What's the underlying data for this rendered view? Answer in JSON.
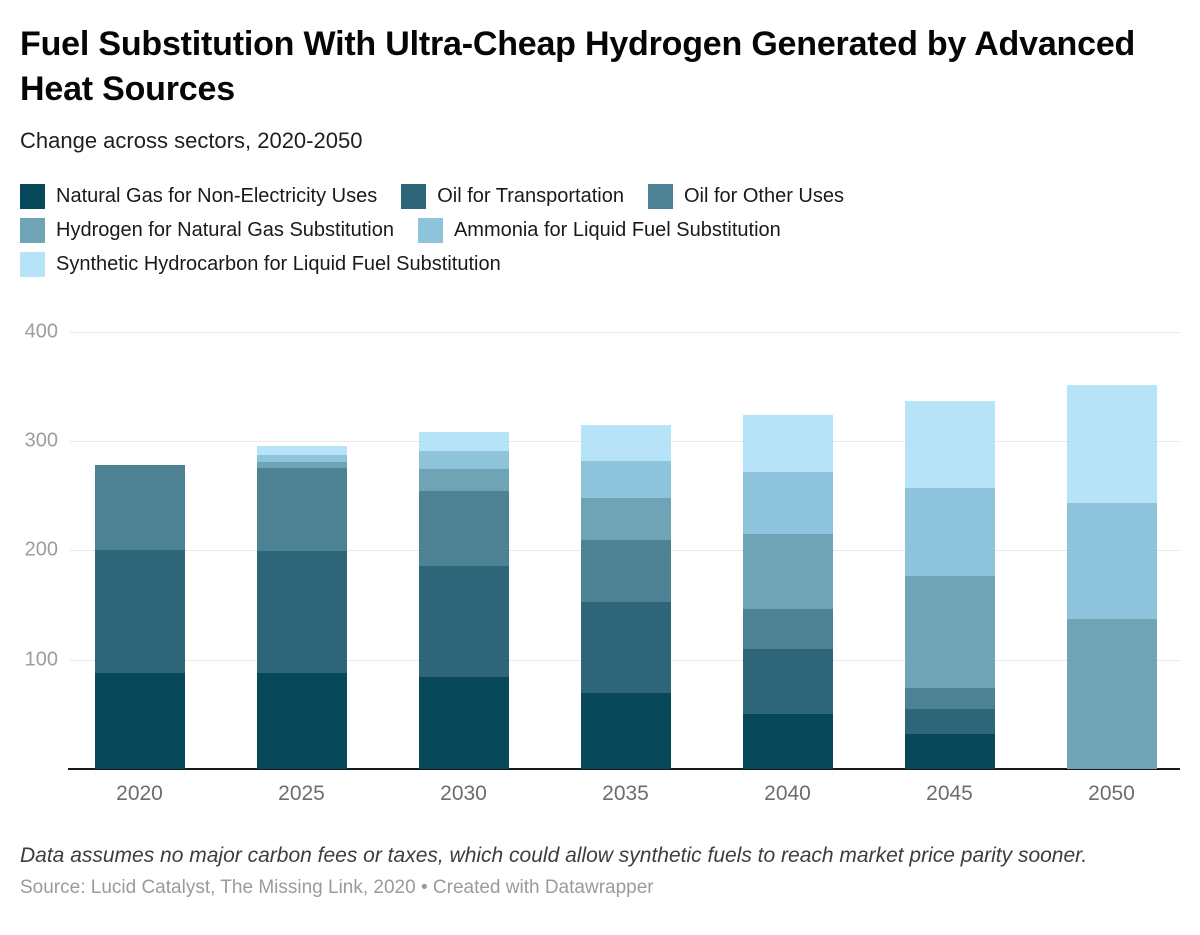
{
  "header": {
    "title": "Fuel Substitution With Ultra-Cheap Hydrogen Generated by Advanced Heat Sources",
    "subtitle": "Change across sectors, 2020-2050"
  },
  "chart_data": {
    "type": "bar",
    "stacked": true,
    "title": "Fuel Substitution With Ultra-Cheap Hydrogen Generated by Advanced Heat Sources",
    "subtitle": "Change across sectors, 2020-2050",
    "categories": [
      "2020",
      "2025",
      "2030",
      "2035",
      "2040",
      "2045",
      "2050"
    ],
    "series": [
      {
        "name": "Natural Gas for Non-Electricity Uses",
        "color": "#07495b",
        "values": [
          88,
          88,
          84,
          69,
          50,
          32,
          0
        ]
      },
      {
        "name": "Oil for Transportation",
        "color": "#2c6678",
        "values": [
          112,
          111,
          102,
          84,
          60,
          23,
          0
        ]
      },
      {
        "name": "Oil for Other Uses",
        "color": "#4d8294",
        "values": [
          78,
          76,
          68,
          56,
          36,
          19,
          0
        ]
      },
      {
        "name": "Hydrogen for Natural Gas Substitution",
        "color": "#6fa4b7",
        "values": [
          0,
          6,
          20,
          39,
          69,
          102,
          137
        ]
      },
      {
        "name": "Ammonia for Liquid Fuel Substitution",
        "color": "#8ec4db",
        "values": [
          0,
          6,
          17,
          34,
          57,
          81,
          106
        ]
      },
      {
        "name": "Synthetic Hydrocarbon for Liquid Fuel Substitution",
        "color": "#b6e3f8",
        "values": [
          0,
          8,
          17,
          33,
          52,
          80,
          108
        ]
      }
    ],
    "totals": [
      278,
      295,
      308,
      315,
      324,
      337,
      351
    ],
    "xlabel": "",
    "ylabel": "",
    "ylim": [
      0,
      400
    ],
    "yticks": [
      400,
      300,
      200,
      100
    ],
    "grid": "horizontal-on",
    "legend_position": "top",
    "legend_rows": [
      [
        0,
        1,
        2
      ],
      [
        3,
        4
      ],
      [
        5
      ]
    ]
  },
  "colors": {
    "background": "#ffffff",
    "gridline": "#e8e8e8",
    "baseline": "#1a1a1a",
    "ytick_text": "#9d9d9d",
    "xtick_text": "#6d6d6d"
  },
  "footer": {
    "note": "Data assumes no major carbon fees or taxes, which could allow synthetic fuels to reach market price parity sooner.",
    "source": "Source: Lucid Catalyst, The Missing Link, 2020 • Created with Datawrapper"
  }
}
